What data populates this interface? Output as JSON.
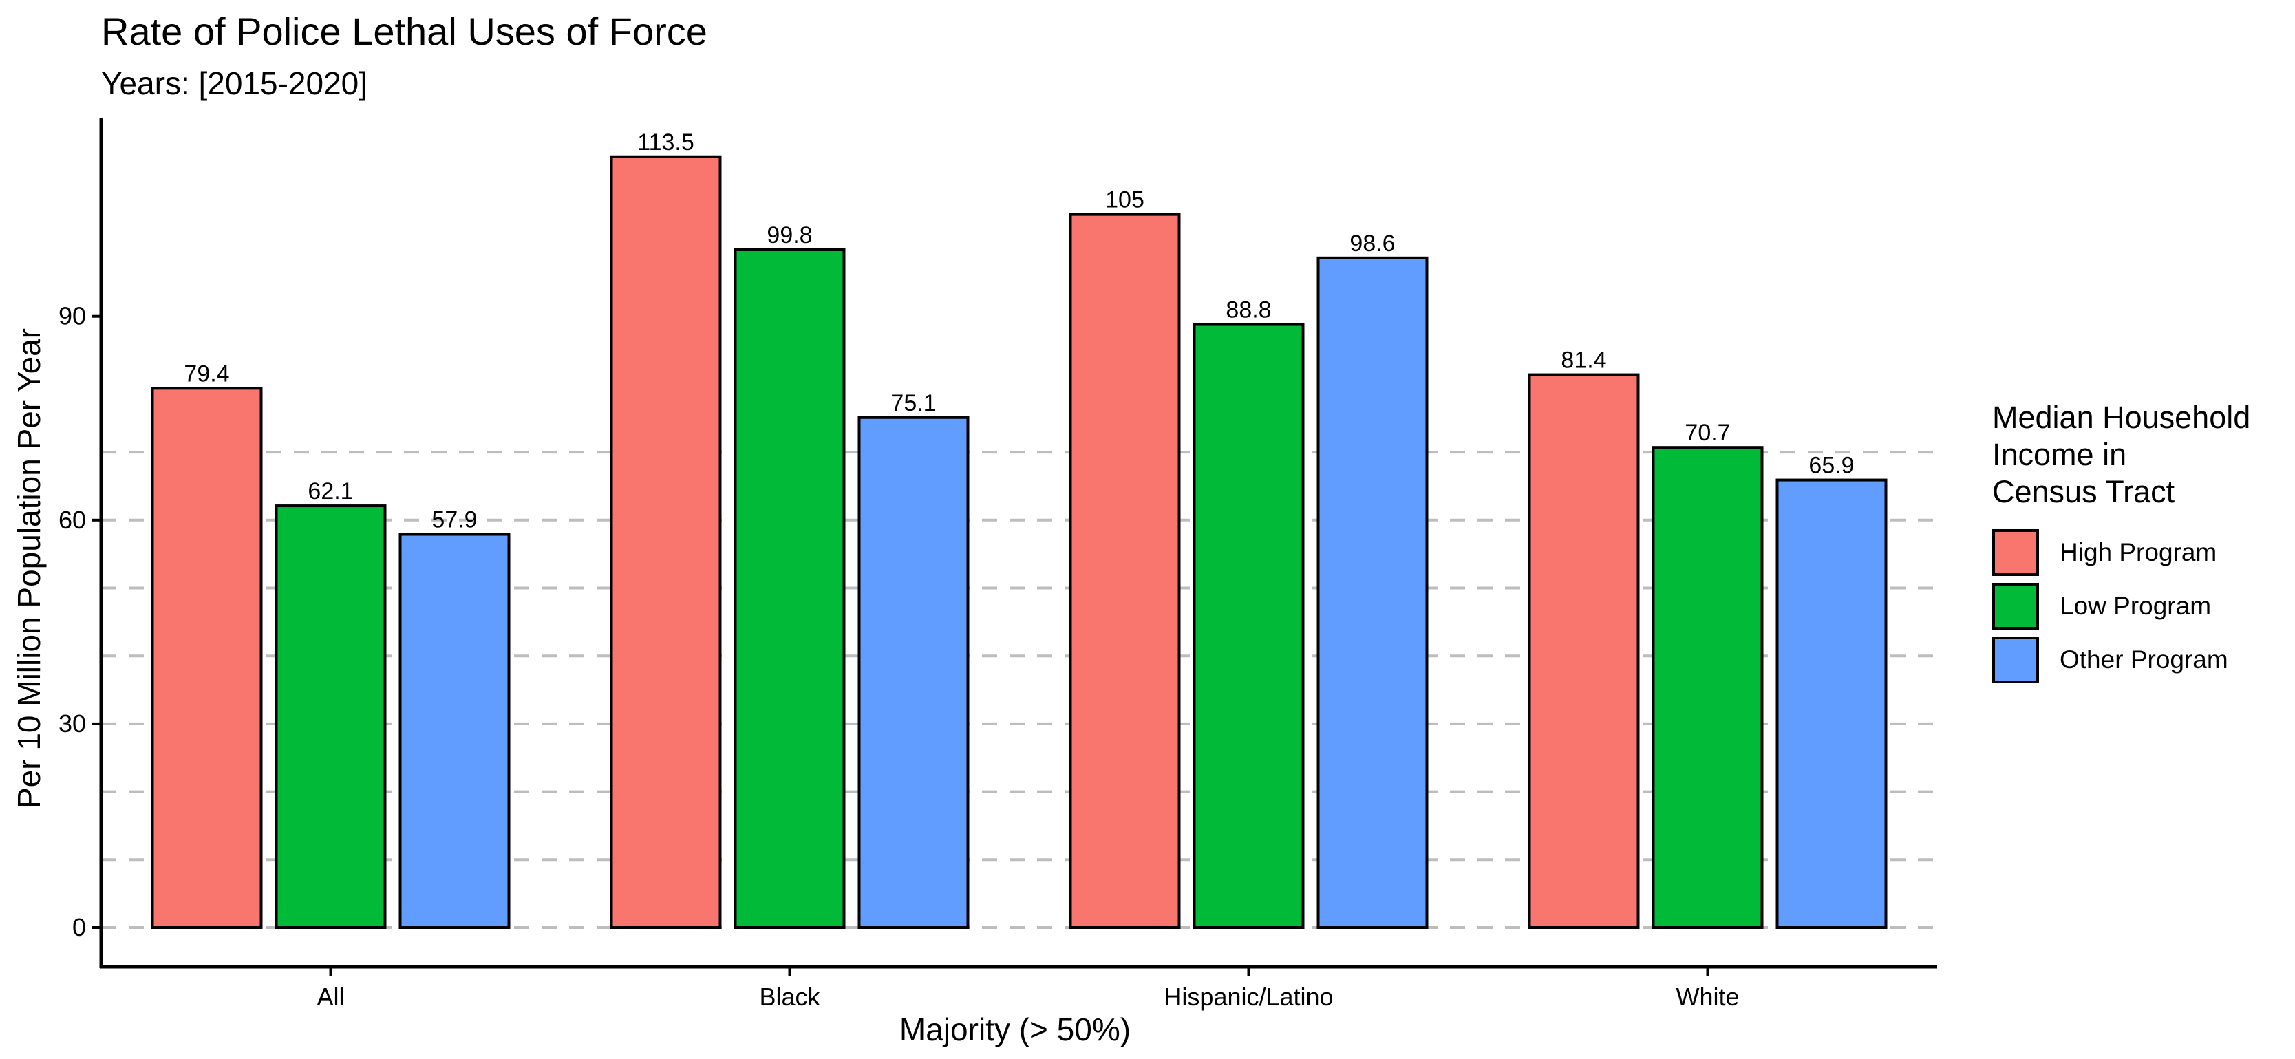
{
  "chart_data": {
    "type": "bar",
    "title": "Rate of Police Lethal Uses of Force",
    "subtitle": "Years: [2015-2020]",
    "xlabel": "Majority (> 50%)",
    "ylabel": "Per 10 Million Population Per Year",
    "categories": [
      "All",
      "Black",
      "Hispanic/Latino",
      "White"
    ],
    "series": [
      {
        "name": "High Program",
        "color": "#F8766D",
        "values": [
          79.4,
          113.5,
          105,
          81.4
        ],
        "labels": [
          "79.4",
          "113.5",
          "105",
          "81.4"
        ]
      },
      {
        "name": "Low Program",
        "color": "#00BA38",
        "values": [
          62.1,
          99.8,
          88.8,
          70.7
        ],
        "labels": [
          "62.1",
          "99.8",
          "88.8",
          "70.7"
        ]
      },
      {
        "name": "Other Program",
        "color": "#619CFF",
        "values": [
          57.9,
          75.1,
          98.6,
          65.9
        ],
        "labels": [
          "57.9",
          "75.1",
          "98.6",
          "65.9"
        ]
      }
    ],
    "yticks": [
      0,
      30,
      60,
      90
    ],
    "ytick_labels": [
      "0",
      "30",
      "60",
      "90"
    ],
    "gridlines": [
      0,
      10,
      20,
      30,
      40,
      50,
      60,
      70
    ],
    "ylim": [
      -5.6,
      119.2
    ],
    "legend_title": "Median Household\nIncome in\nCensus Tract",
    "legend_position": "right"
  }
}
